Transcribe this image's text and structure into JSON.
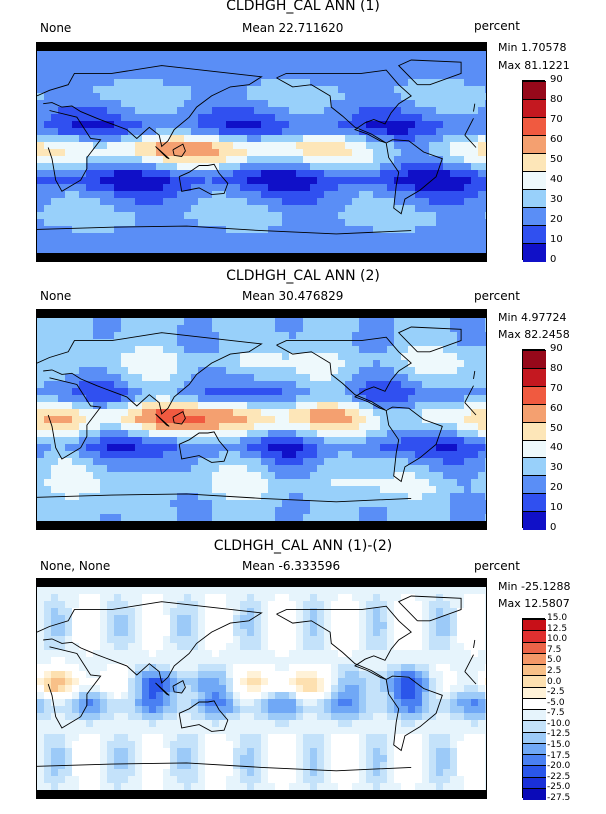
{
  "panels": [
    {
      "title": "CLDHGH_CAL ANN (1)",
      "left_label": "None",
      "mean": "Mean 22.711620",
      "units": "percent",
      "min": "Min 1.70578",
      "max": "Max 81.1221",
      "colormap": "sequential",
      "legend_colors": [
        "#1010c8",
        "#3050f0",
        "#5a8ef6",
        "#98d0fa",
        "#eef9fc",
        "#fde6b8",
        "#f4a070",
        "#f05a40",
        "#c41820",
        "#96081a"
      ],
      "ticks": [
        "90",
        "80",
        "70",
        "60",
        "50",
        "40",
        "30",
        "20",
        "10",
        "0"
      ]
    },
    {
      "title": "CLDHGH_CAL ANN (2)",
      "left_label": "None",
      "mean": "Mean 30.476829",
      "units": "percent",
      "min": "Min 4.97724",
      "max": "Max 82.2458",
      "colormap": "sequential",
      "legend_colors": [
        "#1010c8",
        "#3050f0",
        "#5a8ef6",
        "#98d0fa",
        "#eef9fc",
        "#fde6b8",
        "#f4a070",
        "#f05a40",
        "#c41820",
        "#96081a"
      ],
      "ticks": [
        "90",
        "80",
        "70",
        "60",
        "50",
        "40",
        "30",
        "20",
        "10",
        "0"
      ]
    },
    {
      "title": "CLDHGH_CAL ANN (1)-(2)",
      "left_label": "None, None",
      "mean": "Mean -6.333596",
      "units": "percent",
      "min": "Min -25.1288",
      "max": "Max 12.5807",
      "colormap": "diverging",
      "legend_colors": [
        "#0a0ab8",
        "#1a30d8",
        "#2a56ea",
        "#4a80f2",
        "#70a8f6",
        "#9ccaf8",
        "#c4e2fa",
        "#e6f4fc",
        "#ffffff",
        "#fff2d8",
        "#fde0b0",
        "#f8c088",
        "#f49868",
        "#ec6448",
        "#e03030",
        "#c81018"
      ],
      "ticks": [
        "15.0",
        "12.5",
        "10.0",
        "7.5",
        "5.0",
        "2.5",
        "0.0",
        "-2.5",
        "-5.0",
        "-7.5",
        "-10.0",
        "-12.5",
        "-15.0",
        "-17.5",
        "-20.0",
        "-22.5",
        "-25.0",
        "-27.5"
      ]
    }
  ]
}
